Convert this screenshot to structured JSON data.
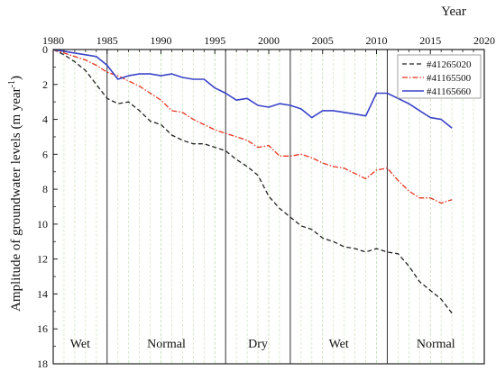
{
  "chart_data": {
    "type": "line",
    "title": "",
    "xlabel": "Year",
    "ylabel": "Amplitude of groundwater levels (m year",
    "ylabel_sup": "-1",
    "ylabel_close": ")",
    "xlim": [
      1980,
      2020
    ],
    "ylim": [
      0,
      18
    ],
    "y_inverted": true,
    "x_axis_position": "top",
    "x_ticks": [
      1980,
      1985,
      1990,
      1995,
      2000,
      2005,
      2010,
      2015,
      2020
    ],
    "y_ticks": [
      0,
      2,
      4,
      6,
      8,
      10,
      12,
      14,
      16,
      18
    ],
    "minor_grid": "vertical, 1 year",
    "legend_position": "top-right",
    "period_dividers": [
      1985,
      1996,
      2002,
      2011
    ],
    "periods": [
      {
        "label": "Wet",
        "start": 1980,
        "end": 1985
      },
      {
        "label": "Normal",
        "start": 1985,
        "end": 1996
      },
      {
        "label": "Dry",
        "start": 1996,
        "end": 2002
      },
      {
        "label": "Wet",
        "start": 2002,
        "end": 2011
      },
      {
        "label": "Normal",
        "start": 2011,
        "end": 2020
      }
    ],
    "series": [
      {
        "name": "#41265020",
        "color": "#222222",
        "style": "dashed",
        "x": [
          1980,
          1981,
          1982,
          1983,
          1984,
          1985,
          1986,
          1987,
          1988,
          1989,
          1990,
          1991,
          1992,
          1993,
          1994,
          1995,
          1996,
          1997,
          1998,
          1999,
          2000,
          2001,
          2002,
          2003,
          2004,
          2005,
          2006,
          2007,
          2008,
          2009,
          2010,
          2011,
          2012,
          2013,
          2014,
          2015,
          2016,
          2017
        ],
        "values": [
          0,
          0.3,
          0.7,
          1.2,
          2.0,
          2.8,
          3.1,
          3.0,
          3.5,
          4.1,
          4.3,
          4.9,
          5.2,
          5.4,
          5.4,
          5.6,
          5.8,
          6.3,
          6.7,
          7.2,
          8.4,
          9.1,
          9.6,
          10.1,
          10.3,
          10.8,
          11.0,
          11.3,
          11.4,
          11.6,
          11.4,
          11.6,
          11.7,
          12.4,
          13.3,
          13.8,
          14.3,
          15.1
        ]
      },
      {
        "name": "#41165500",
        "color": "#e8331f",
        "style": "dash-dot",
        "x": [
          1980,
          1981,
          1982,
          1983,
          1984,
          1985,
          1986,
          1987,
          1988,
          1989,
          1990,
          1991,
          1992,
          1993,
          1994,
          1995,
          1996,
          1997,
          1998,
          1999,
          2000,
          2001,
          2002,
          2003,
          2004,
          2005,
          2006,
          2007,
          2008,
          2009,
          2010,
          2011,
          2012,
          2013,
          2014,
          2015,
          2016,
          2017
        ],
        "values": [
          0,
          0.2,
          0.4,
          0.6,
          0.9,
          1.3,
          1.5,
          1.8,
          2.1,
          2.5,
          2.9,
          3.5,
          3.6,
          4.0,
          4.3,
          4.6,
          4.8,
          5.0,
          5.2,
          5.6,
          5.5,
          6.1,
          6.1,
          6.0,
          6.2,
          6.5,
          6.7,
          6.8,
          7.1,
          7.4,
          6.9,
          6.8,
          7.5,
          8.1,
          8.5,
          8.5,
          8.8,
          8.6
        ]
      },
      {
        "name": "#41165660",
        "color": "#3a43c9",
        "style": "solid",
        "x": [
          1980,
          1981,
          1982,
          1983,
          1984,
          1985,
          1986,
          1987,
          1988,
          1989,
          1990,
          1991,
          1992,
          1993,
          1994,
          1995,
          1996,
          1997,
          1998,
          1999,
          2000,
          2001,
          2002,
          2003,
          2004,
          2005,
          2006,
          2007,
          2008,
          2009,
          2010,
          2011,
          2012,
          2013,
          2014,
          2015,
          2016,
          2017
        ],
        "values": [
          0,
          0.1,
          0.2,
          0.3,
          0.4,
          0.9,
          1.7,
          1.5,
          1.4,
          1.4,
          1.5,
          1.4,
          1.6,
          1.7,
          1.7,
          2.2,
          2.5,
          2.9,
          2.8,
          3.2,
          3.3,
          3.1,
          3.2,
          3.4,
          3.9,
          3.5,
          3.5,
          3.6,
          3.7,
          3.8,
          2.5,
          2.5,
          2.8,
          3.1,
          3.5,
          3.9,
          4.0,
          4.5
        ]
      }
    ]
  }
}
